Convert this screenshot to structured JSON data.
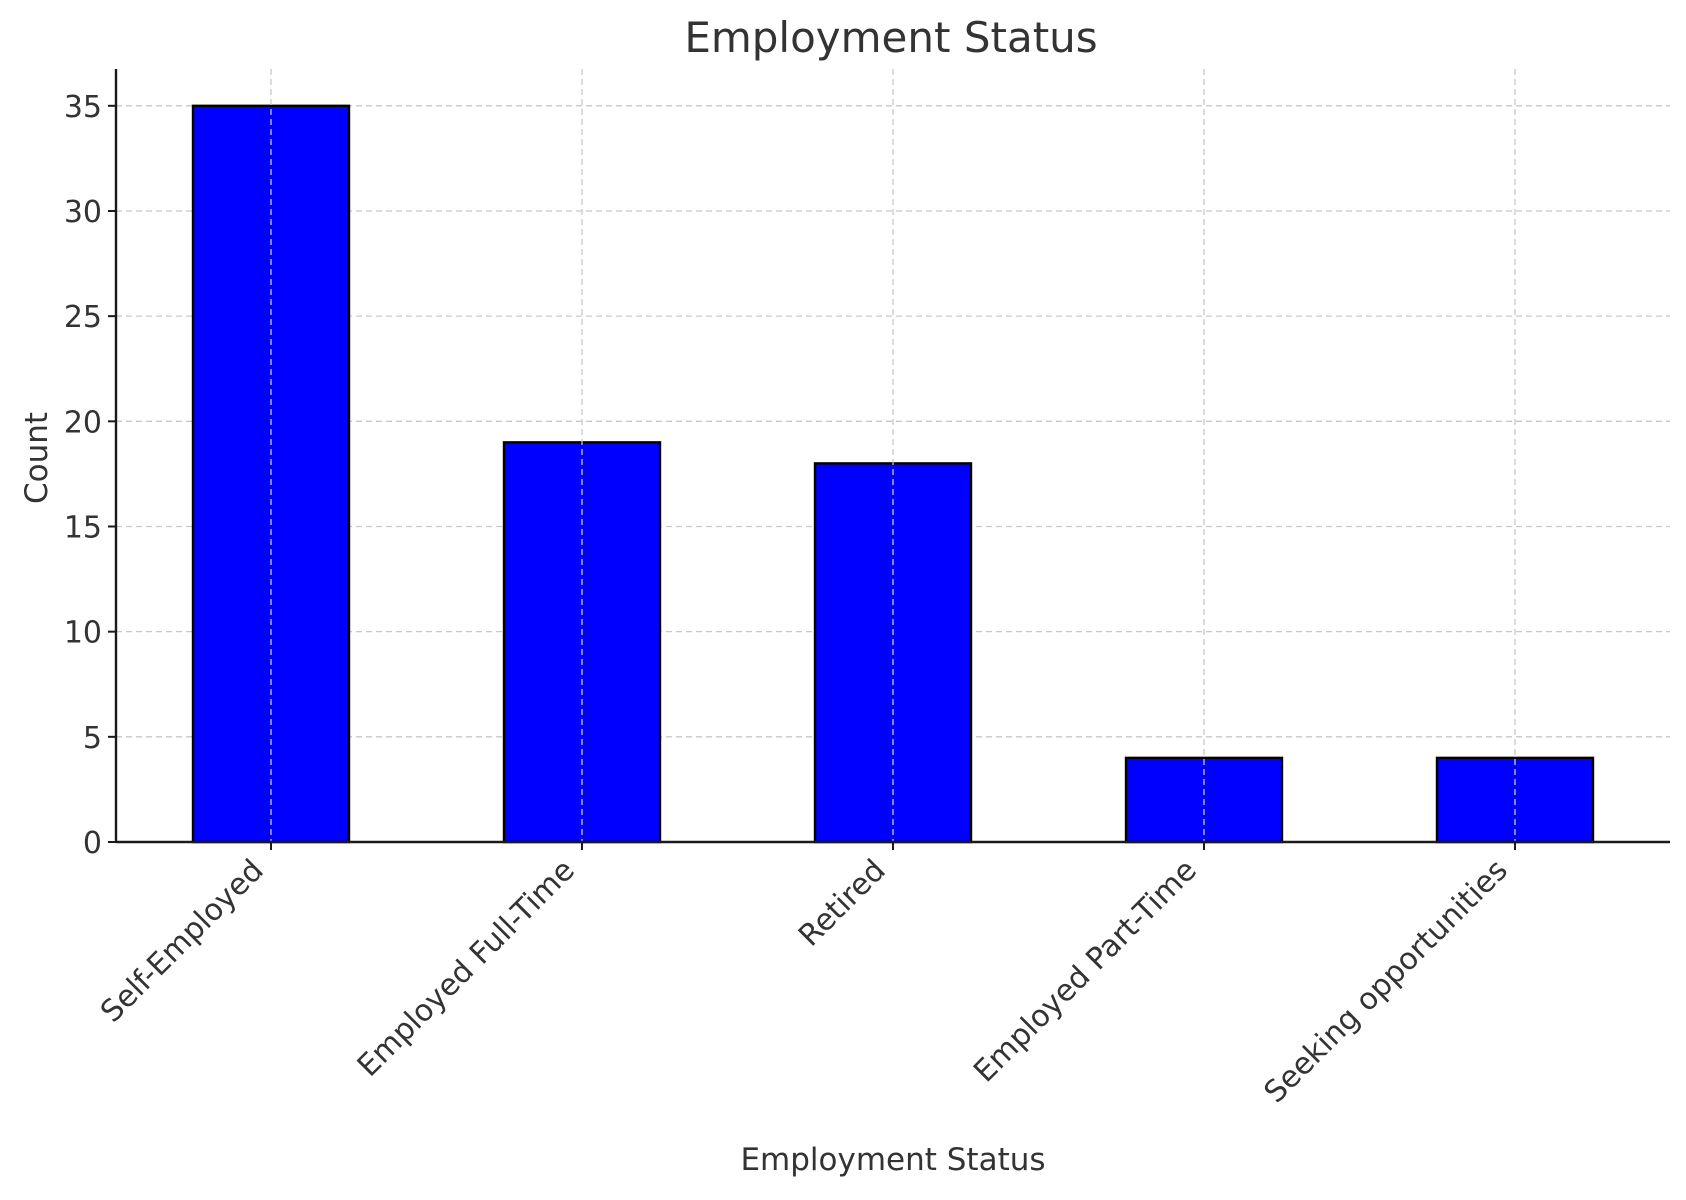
{
  "chart_data": {
    "type": "bar",
    "title": "Employment Status",
    "xlabel": "Employment Status",
    "ylabel": "Count",
    "categories": [
      "Self-Employed",
      "Employed Full-Time",
      "Retired",
      "Employed Part-Time",
      "Seeking opportunities"
    ],
    "values": [
      35,
      19,
      18,
      4,
      4
    ],
    "ylim": [
      0,
      36.75
    ],
    "yticks": [
      0,
      5,
      10,
      15,
      20,
      25,
      30,
      35
    ],
    "grid": true,
    "bar_color": "#0000ff",
    "edge_color": "#000000"
  }
}
